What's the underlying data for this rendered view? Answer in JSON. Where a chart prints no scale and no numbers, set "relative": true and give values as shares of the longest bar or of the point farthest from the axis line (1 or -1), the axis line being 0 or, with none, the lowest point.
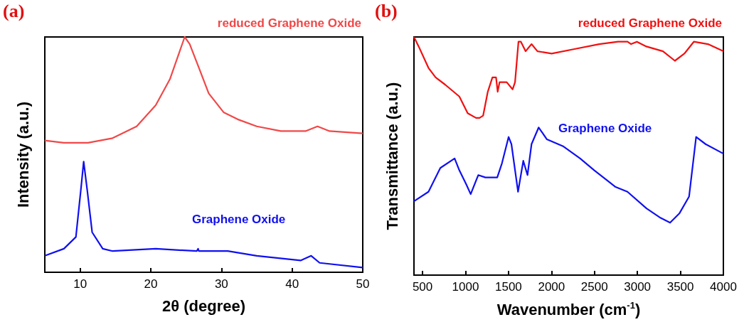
{
  "chart_data": [
    {
      "type": "line",
      "xlabel": "2θ (degree)",
      "ylabel": "Intensity (a.u.)",
      "annotations": [
        "(a)"
      ],
      "relative": true,
      "xlim": [
        5,
        50
      ],
      "xticks": [
        10,
        20,
        30,
        40,
        50
      ],
      "tick_labels": "x",
      "grid": false,
      "legend": false,
      "marker": "none",
      "series": [
        {
          "name": "reduced Graphene Oxide",
          "color": "#f04848",
          "x": [
            5,
            7.7,
            11.1,
            14.6,
            18,
            20.7,
            22.7,
            24.1,
            24.8,
            25.5,
            26.8,
            28.2,
            30.3,
            32.3,
            35,
            38.4,
            41.9,
            43.6,
            45.3,
            50
          ],
          "values": [
            0.56,
            0.55,
            0.55,
            0.57,
            0.62,
            0.71,
            0.82,
            0.94,
            1,
            0.97,
            0.87,
            0.76,
            0.68,
            0.65,
            0.62,
            0.6,
            0.6,
            0.62,
            0.6,
            0.59
          ]
        },
        {
          "name": "Graphene Oxide",
          "color": "#1010f0",
          "x": [
            5,
            7.7,
            9.4,
            10.1,
            10.5,
            11,
            11.7,
            13.2,
            14.6,
            20.7,
            26.5,
            26.7,
            26.8,
            30.9,
            35,
            41.2,
            42.7,
            43.9,
            50
          ],
          "values": [
            0.07,
            0.1,
            0.15,
            0.35,
            0.47,
            0.35,
            0.17,
            0.1,
            0.09,
            0.1,
            0.09,
            0.1,
            0.09,
            0.09,
            0.07,
            0.05,
            0.07,
            0.04,
            0.02
          ]
        }
      ]
    },
    {
      "type": "line",
      "xlabel": "Wavenumber (cm$^{-1}$)",
      "ylabel": "Transmittance (a.u.)",
      "annotations": [
        "(b)"
      ],
      "relative": true,
      "xlim": [
        400,
        4000
      ],
      "xticks": [
        500,
        1000,
        1500,
        2000,
        2500,
        3000,
        3500,
        4000
      ],
      "tick_labels": "x",
      "grid": false,
      "legend": false,
      "marker": "none",
      "series": [
        {
          "name": "reduced Graphene Oxide",
          "color": "#f01010",
          "x": [
            400,
            455,
            569,
            652,
            762,
            928,
            1025,
            1122,
            1163,
            1205,
            1259,
            1313,
            1355,
            1374,
            1396,
            1479,
            1548,
            1576,
            1616,
            1644,
            1699,
            1768,
            1837,
            2002,
            2278,
            2554,
            2774,
            2885,
            2926,
            2994,
            3104,
            3297,
            3436,
            3546,
            3656,
            3821,
            4000
          ],
          "values": [
            1,
            0.96,
            0.87,
            0.83,
            0.8,
            0.75,
            0.68,
            0.66,
            0.66,
            0.67,
            0.77,
            0.83,
            0.83,
            0.77,
            0.81,
            0.81,
            0.78,
            0.81,
            0.98,
            0.98,
            0.94,
            0.97,
            0.94,
            0.93,
            0.95,
            0.97,
            0.98,
            0.98,
            0.97,
            0.98,
            0.96,
            0.94,
            0.9,
            0.93,
            0.98,
            0.97,
            0.94
          ]
        },
        {
          "name": "Graphene Oxide",
          "color": "#1010f0",
          "x": [
            400,
            569,
            707,
            873,
            928,
            1010,
            1060,
            1148,
            1231,
            1369,
            1424,
            1501,
            1534,
            1611,
            1672,
            1721,
            1768,
            1851,
            1947,
            2140,
            2333,
            2498,
            2746,
            2884,
            3105,
            3270,
            3380,
            3490,
            3601,
            3683,
            3793,
            4000
          ],
          "values": [
            0.31,
            0.35,
            0.45,
            0.49,
            0.44,
            0.38,
            0.34,
            0.42,
            0.41,
            0.41,
            0.47,
            0.58,
            0.55,
            0.35,
            0.48,
            0.42,
            0.55,
            0.62,
            0.57,
            0.54,
            0.49,
            0.44,
            0.37,
            0.35,
            0.28,
            0.24,
            0.22,
            0.26,
            0.33,
            0.58,
            0.55,
            0.51
          ]
        }
      ]
    }
  ]
}
